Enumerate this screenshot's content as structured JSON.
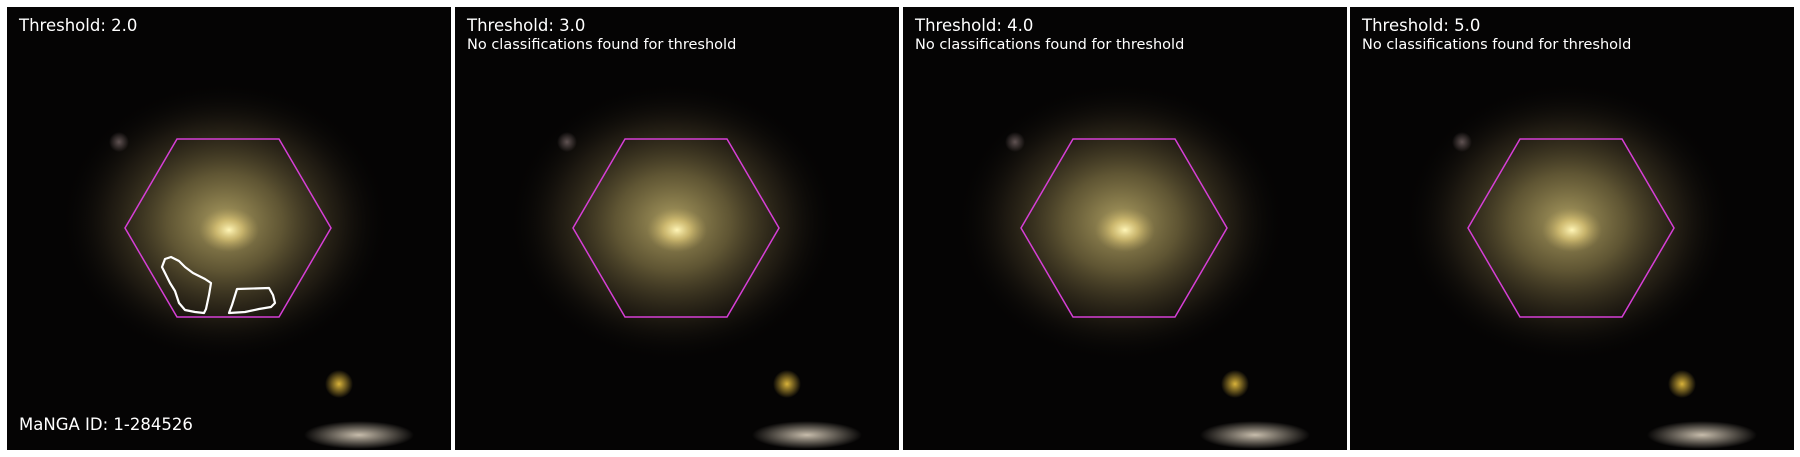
{
  "figure": {
    "manga_id_label": "MaNGA ID: 1-284526",
    "colors": {
      "hexagon": "#d63fd6",
      "contour": "#ffffff",
      "background": "#050404",
      "separator": "#ffffff"
    },
    "panels": [
      {
        "threshold_label": "Threshold: 2.0",
        "note": "",
        "has_contours": true
      },
      {
        "threshold_label": "Threshold: 3.0",
        "note": "No classifications found for threshold",
        "has_contours": false
      },
      {
        "threshold_label": "Threshold: 4.0",
        "note": "No classifications found for threshold",
        "has_contours": false
      },
      {
        "threshold_label": "Threshold: 5.0",
        "note": "No classifications found for threshold",
        "has_contours": false
      }
    ]
  }
}
